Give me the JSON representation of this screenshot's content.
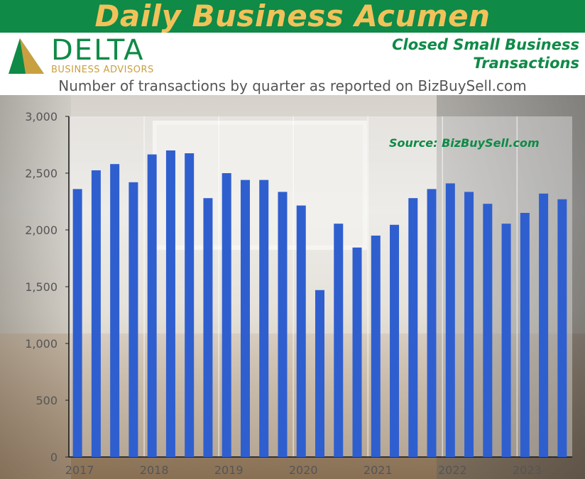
{
  "header": {
    "banner_title": "Daily Business Acumen",
    "logo_word": "DELTA",
    "logo_sub": "BUSINESS ADVISORS",
    "headline_line1": "Closed Small Business",
    "headline_line2": "Transactions",
    "subtitle": "Number of transactions by quarter as reported on BizBuySell.com"
  },
  "colors": {
    "banner": "#0f8a47",
    "banner_text": "#f2c25a",
    "bar": "#2f5fcf",
    "gold": "#c9a040"
  },
  "chart_data": {
    "type": "bar",
    "title": "",
    "xlabel": "",
    "ylabel": "",
    "ylim": [
      0,
      3000
    ],
    "yticks": [
      0,
      500,
      1000,
      1500,
      2000,
      2500,
      3000
    ],
    "ytick_labels": [
      "0",
      "500",
      "1,000",
      "1,500",
      "2,000",
      "2,500",
      "3,000"
    ],
    "year_labels": [
      "2017",
      "2018",
      "2019",
      "2020",
      "2021",
      "2022",
      "2023"
    ],
    "grid": "vertical lines at year boundaries",
    "annotation": "Source: BizBuySell.com",
    "categories": [
      "2017 Q1",
      "2017 Q2",
      "2017 Q3",
      "2017 Q4",
      "2018 Q1",
      "2018 Q2",
      "2018 Q3",
      "2018 Q4",
      "2019 Q1",
      "2019 Q2",
      "2019 Q3",
      "2019 Q4",
      "2020 Q1",
      "2020 Q2",
      "2020 Q3",
      "2020 Q4",
      "2021 Q1",
      "2021 Q2",
      "2021 Q3",
      "2021 Q4",
      "2022 Q1",
      "2022 Q2",
      "2022 Q3",
      "2022 Q4",
      "2023 Q1",
      "2023 Q2",
      "2023 Q3"
    ],
    "values": [
      2360,
      2525,
      2580,
      2420,
      2665,
      2700,
      2675,
      2280,
      2500,
      2440,
      2440,
      2335,
      2215,
      1470,
      2055,
      1845,
      1950,
      2045,
      2280,
      2360,
      2410,
      2335,
      2230,
      2055,
      2150,
      2320,
      2270
    ]
  }
}
